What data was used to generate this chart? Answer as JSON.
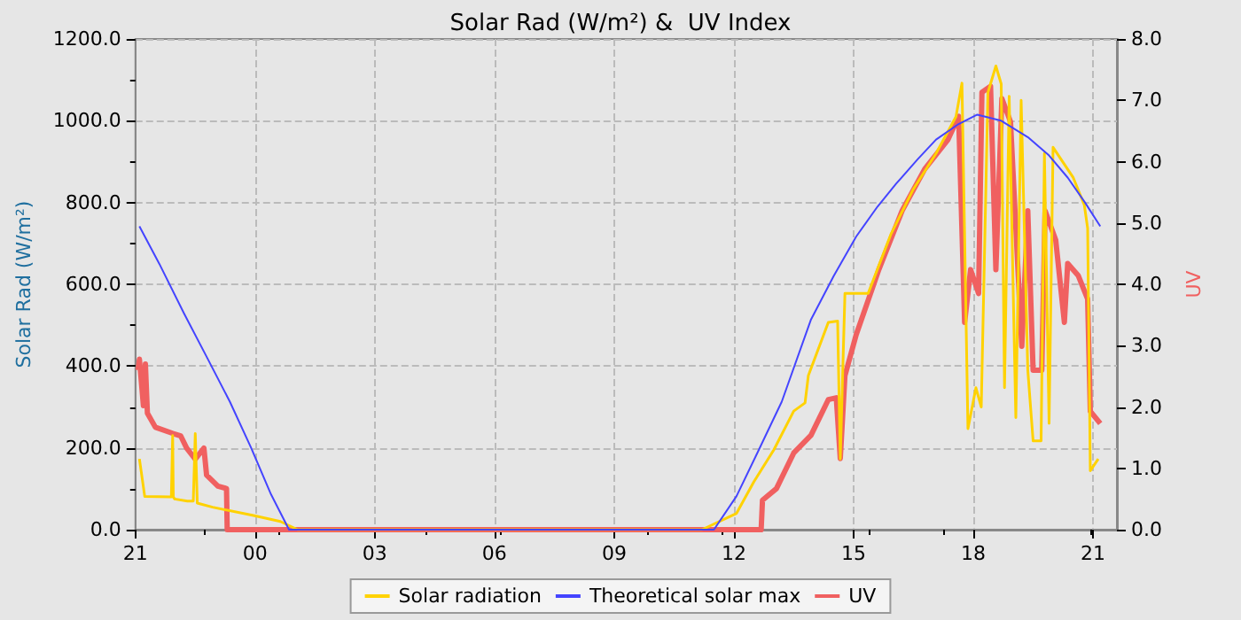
{
  "chart_data": {
    "type": "line",
    "title": "Solar Rad (W/m²) &  UV Index",
    "ylabel": "Solar Rad (W/m²)",
    "y2label": "UV",
    "xlim": [
      "--01-01T21:00",
      "--01-02T21:36"
    ],
    "xticks": [
      {
        "value": "--01-01T21:00",
        "label": "21"
      },
      {
        "value": "--01-02T00:00",
        "label": "00"
      },
      {
        "value": "--01-02T03:00",
        "label": "03"
      },
      {
        "value": "--01-02T06:00",
        "label": "06"
      },
      {
        "value": "--01-02T09:00",
        "label": "09"
      },
      {
        "value": "--01-02T12:00",
        "label": "12"
      },
      {
        "value": "--01-02T15:00",
        "label": "15"
      },
      {
        "value": "--01-02T18:00",
        "label": "18"
      },
      {
        "value": "--01-02T21:00",
        "label": "21"
      }
    ],
    "ylim": [
      0,
      1200
    ],
    "yticks": [
      {
        "value": 0,
        "label": "0.0"
      },
      {
        "value": 200,
        "label": "200.0"
      },
      {
        "value": 400,
        "label": "400.0"
      },
      {
        "value": 600,
        "label": "600.0"
      },
      {
        "value": 800,
        "label": "800.0"
      },
      {
        "value": 1000,
        "label": "1000.0"
      },
      {
        "value": 1200,
        "label": "1200.0"
      }
    ],
    "y2lim": [
      0,
      8
    ],
    "y2ticks": [
      {
        "value": 0,
        "label": "0.0"
      },
      {
        "value": 1,
        "label": "1.0"
      },
      {
        "value": 2,
        "label": "2.0"
      },
      {
        "value": 3,
        "label": "3.0"
      },
      {
        "value": 4,
        "label": "4.0"
      },
      {
        "value": 5,
        "label": "5.0"
      },
      {
        "value": 6,
        "label": "6.0"
      },
      {
        "value": 7,
        "label": "7.0"
      },
      {
        "value": 8,
        "label": "8.0"
      }
    ],
    "grid": true,
    "legend": "bottom",
    "marker": "none",
    "series": [
      {
        "name": "Solar radiation",
        "color": "#ffd200",
        "x": [
          "--01-01T21:06",
          "--01-01T21:14",
          "--01-01T21:54",
          "--01-01T21:56",
          "--01-01T21:57",
          "--01-01T21:59",
          "--01-01T22:18",
          "--01-01T22:27",
          "--01-01T22:30",
          "--01-01T22:33",
          "--01-01T22:56",
          "--01-01T23:56",
          "--01-02T00:38",
          "--01-02T01:04",
          "--01-02T11:12",
          "--01-02T12:04",
          "--01-02T12:30",
          "--01-02T13:00",
          "--01-02T13:30",
          "--01-02T13:47",
          "--01-02T13:52",
          "--01-02T14:22",
          "--01-02T14:36",
          "--01-02T14:40",
          "--01-02T14:47",
          "--01-02T15:22",
          "--01-02T15:56",
          "--01-02T16:30",
          "--01-02T17:04",
          "--01-02T17:34",
          "--01-02T17:43",
          "--01-02T17:52",
          "--01-02T18:04",
          "--01-02T18:12",
          "--01-02T18:22",
          "--01-02T18:34",
          "--01-02T18:42",
          "--01-02T18:47",
          "--01-02T18:54",
          "--01-02T19:04",
          "--01-02T19:12",
          "--01-02T19:22",
          "--01-02T19:30",
          "--01-02T19:42",
          "--01-02T19:47",
          "--01-02T19:54",
          "--01-02T20:00",
          "--01-02T20:30",
          "--01-02T20:47",
          "--01-02T20:52",
          "--01-02T20:56",
          "--01-02T21:08"
        ],
        "values": [
          173,
          81,
          80,
          230,
          80,
          75,
          70,
          70,
          235,
          65,
          55,
          35,
          20,
          0,
          0,
          40,
          117,
          195,
          290,
          310,
          377,
          507,
          510,
          173,
          578,
          578,
          722,
          833,
          920,
          1010,
          1092,
          247,
          347,
          300,
          1069,
          1134,
          1090,
          347,
          1060,
          274,
          1050,
          390,
          217,
          217,
          920,
          260,
          935,
          862,
          794,
          737,
          144,
          173
        ]
      },
      {
        "name": "Theoretical solar max",
        "color": "#4444ff",
        "x": [
          "--01-01T21:06",
          "--01-01T21:36",
          "--01-01T22:13",
          "--01-01T22:48",
          "--01-01T23:22",
          "--01-01T23:54",
          "--01-02T00:24",
          "--01-02T00:51",
          "--01-02T11:30",
          "--01-02T12:04",
          "--01-02T12:36",
          "--01-02T13:12",
          "--01-02T13:56",
          "--01-02T14:30",
          "--01-02T15:04",
          "--01-02T15:36",
          "--01-02T16:04",
          "--01-02T16:36",
          "--01-02T17:04",
          "--01-02T17:36",
          "--01-02T18:06",
          "--01-02T18:42",
          "--01-02T19:22",
          "--01-02T19:54",
          "--01-02T20:22",
          "--01-02T20:48",
          "--01-02T21:11"
        ],
        "values": [
          742,
          650,
          529,
          420,
          313,
          200,
          86,
          0,
          0,
          82,
          190,
          313,
          514,
          620,
          717,
          790,
          846,
          905,
          954,
          990,
          1015,
          1000,
          960,
          915,
          861,
          800,
          742
        ]
      },
      {
        "name": "UV",
        "color": "#f06060",
        "axis": "y2",
        "x": [
          "--01-01T21:04",
          "--01-01T21:06",
          "--01-01T21:12",
          "--01-01T21:15",
          "--01-01T21:18",
          "--01-01T21:30",
          "--01-01T21:56",
          "--01-01T22:08",
          "--01-01T22:17",
          "--01-01T22:30",
          "--01-01T22:43",
          "--01-01T22:47",
          "--01-01T23:04",
          "--01-01T23:17",
          "--01-01T23:18",
          "--01-02T12:41",
          "--01-02T12:43",
          "--01-02T13:04",
          "--01-02T13:30",
          "--01-02T13:56",
          "--01-02T14:22",
          "--01-02T14:34",
          "--01-02T14:40",
          "--01-02T14:47",
          "--01-02T15:04",
          "--01-02T15:38",
          "--01-02T16:13",
          "--01-02T16:47",
          "--01-02T17:22",
          "--01-02T17:38",
          "--01-02T17:47",
          "--01-02T17:56",
          "--01-02T18:08",
          "--01-02T18:13",
          "--01-02T18:26",
          "--01-02T18:34",
          "--01-02T18:43",
          "--01-02T18:56",
          "--01-02T19:13",
          "--01-02T19:22",
          "--01-02T19:30",
          "--01-02T19:43",
          "--01-02T19:48",
          "--01-02T20:04",
          "--01-02T20:17",
          "--01-02T20:22",
          "--01-02T20:38",
          "--01-02T20:52",
          "--01-02T20:56",
          "--01-02T21:11"
        ],
        "values": [
          2.6,
          2.78,
          2.02,
          2.7,
          1.9,
          1.67,
          1.57,
          1.53,
          1.33,
          1.15,
          1.33,
          0.89,
          0.71,
          0.67,
          0,
          0,
          0.48,
          0.67,
          1.25,
          1.54,
          2.12,
          2.15,
          1.16,
          2.51,
          3.18,
          4.24,
          5.2,
          5.88,
          6.36,
          6.74,
          3.38,
          4.24,
          3.85,
          7.13,
          7.23,
          4.24,
          7.03,
          6.65,
          2.99,
          5.2,
          2.6,
          2.6,
          5.2,
          4.72,
          3.38,
          4.34,
          4.14,
          3.76,
          1.93,
          1.73
        ]
      }
    ]
  }
}
